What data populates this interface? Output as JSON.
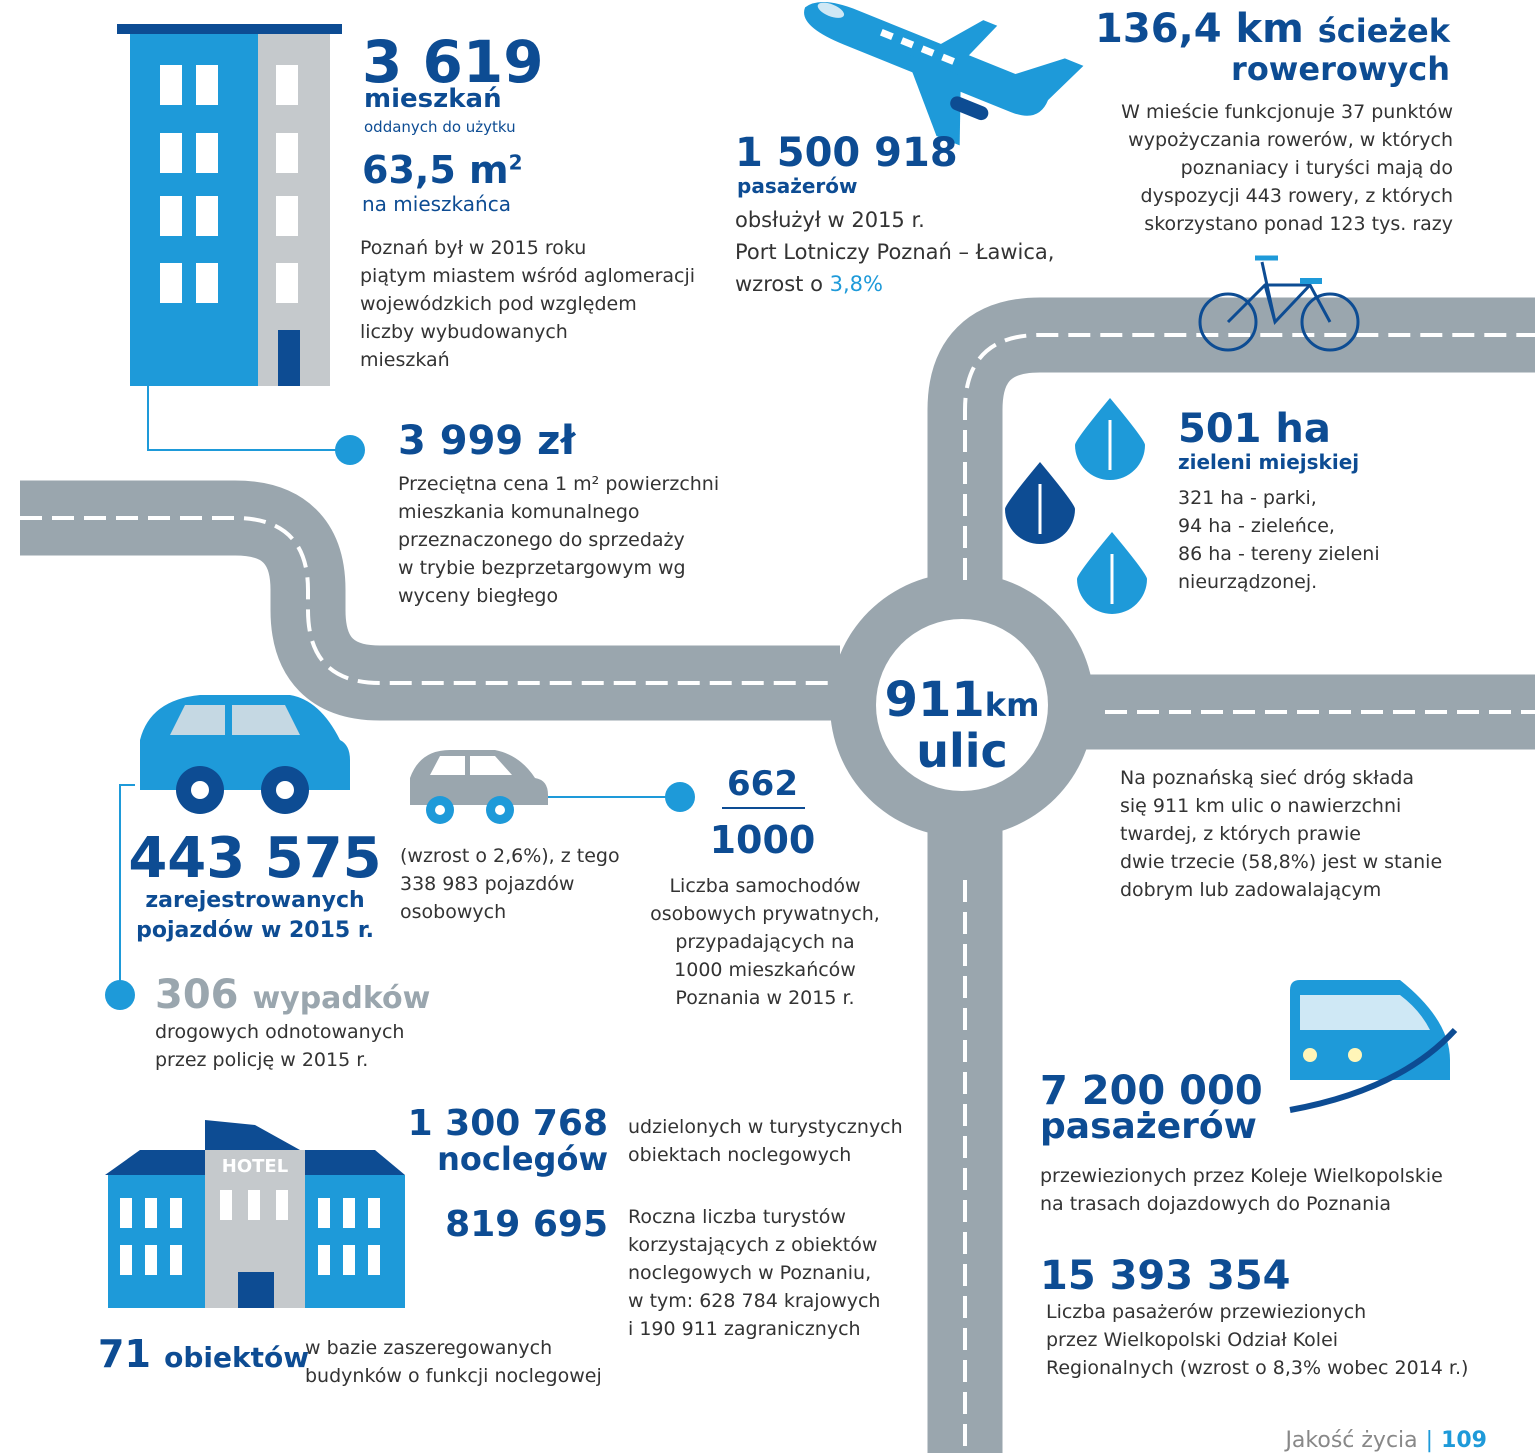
{
  "housing": {
    "count": "3 619",
    "count_label": "mieszkań",
    "count_sub": "oddanych do użytku",
    "area": "63,5 m",
    "area_sup": "2",
    "area_label": "na mieszkańca",
    "text": [
      "Poznań był w 2015 roku",
      "piątym miastem wśród aglomeracji",
      "wojewódzkich pod względem",
      "liczby wybudowanych",
      "mieszkań"
    ],
    "price": "3 999 zł",
    "price_text": [
      "Przeciętna cena 1 m² powierzchni",
      "mieszkania komunalnego",
      "przeznaczonego do sprzedaży",
      "w trybie bezprzetargowym wg",
      "wyceny biegłego"
    ]
  },
  "airport": {
    "value": "1 500 918",
    "label": "pasażerów",
    "text": [
      "obsłużył w 2015 r.",
      "Port Lotniczy Poznań – Ławica,"
    ],
    "growth_prefix": "wzrost o",
    "growth": "3,8%"
  },
  "bikes": {
    "value": "136,4 km",
    "label": "ścieżek",
    "label2": "rowerowych",
    "text": [
      "W mieście funkcjonuje 37 punktów",
      "wypożyczania rowerów, w których",
      "poznaniacy i turyści mają do",
      "dyspozycji 443 rowery, z których",
      "skorzystano ponad 123 tys. razy"
    ]
  },
  "green": {
    "value": "501 ha",
    "label": "zieleni miejskiej",
    "text": [
      "321 ha - parki,",
      "94 ha - zieleńce,",
      "86 ha - tereny zieleni",
      "nieurządzonej."
    ]
  },
  "streets": {
    "value": "911",
    "unit": "km",
    "label": "ulic",
    "text": [
      "Na poznańską sieć dróg składa",
      "się 911 km ulic o nawierzchni",
      "twardej, z których prawie",
      "dwie trzecie (58,8%) jest w stanie",
      "dobrym lub zadowalającym"
    ]
  },
  "vehicles": {
    "value": "443 575",
    "label": [
      "zarejestrowanych",
      "pojazdów w 2015 r."
    ],
    "text": [
      "(wzrost o 2,6%), z tego",
      "338 983 pojazdów",
      "osobowych"
    ],
    "ratio_top": "662",
    "ratio_bottom": "1000",
    "ratio_text": [
      "Liczba samochodów",
      "osobowych prywatnych,",
      "przypadających na",
      "1000 mieszkańców",
      "Poznania w 2015 r."
    ]
  },
  "accidents": {
    "value": "306",
    "label": "wypadków",
    "text": [
      "drogowych odnotowanych",
      "przez policję w 2015 r."
    ]
  },
  "hotels": {
    "sign": "HOTEL",
    "nights": "1 300 768",
    "nights_label": "noclegów",
    "nights_text": [
      "udzielonych w turystycznych",
      "obiektach noclegowych"
    ],
    "tourists": "819 695",
    "tourists_text": [
      "Roczna liczba turystów",
      "korzystających z obiektów",
      "noclegowych w Poznaniu,",
      "w tym: 628 784 krajowych",
      "i 190 911 zagranicznych"
    ],
    "objects": "71",
    "objects_label": "obiektów",
    "objects_text": [
      "w bazie zaszeregowanych",
      "budynków o funkcji noclegowej"
    ]
  },
  "rail": {
    "value": "7 200 000",
    "label": "pasażerów",
    "text": [
      "przewiezionych przez Koleje Wielkopolskie",
      "na trasach dojazdowych do Poznania"
    ],
    "value2": "15 393 354",
    "text2": [
      "Liczba pasażerów przewiezionych",
      "przez Wielkopolski Odział Kolei",
      "Regionalnych (wzrost o 8,3% wobec 2014 r.)"
    ]
  },
  "footer": {
    "section": "Jakość życia",
    "page": "109"
  }
}
